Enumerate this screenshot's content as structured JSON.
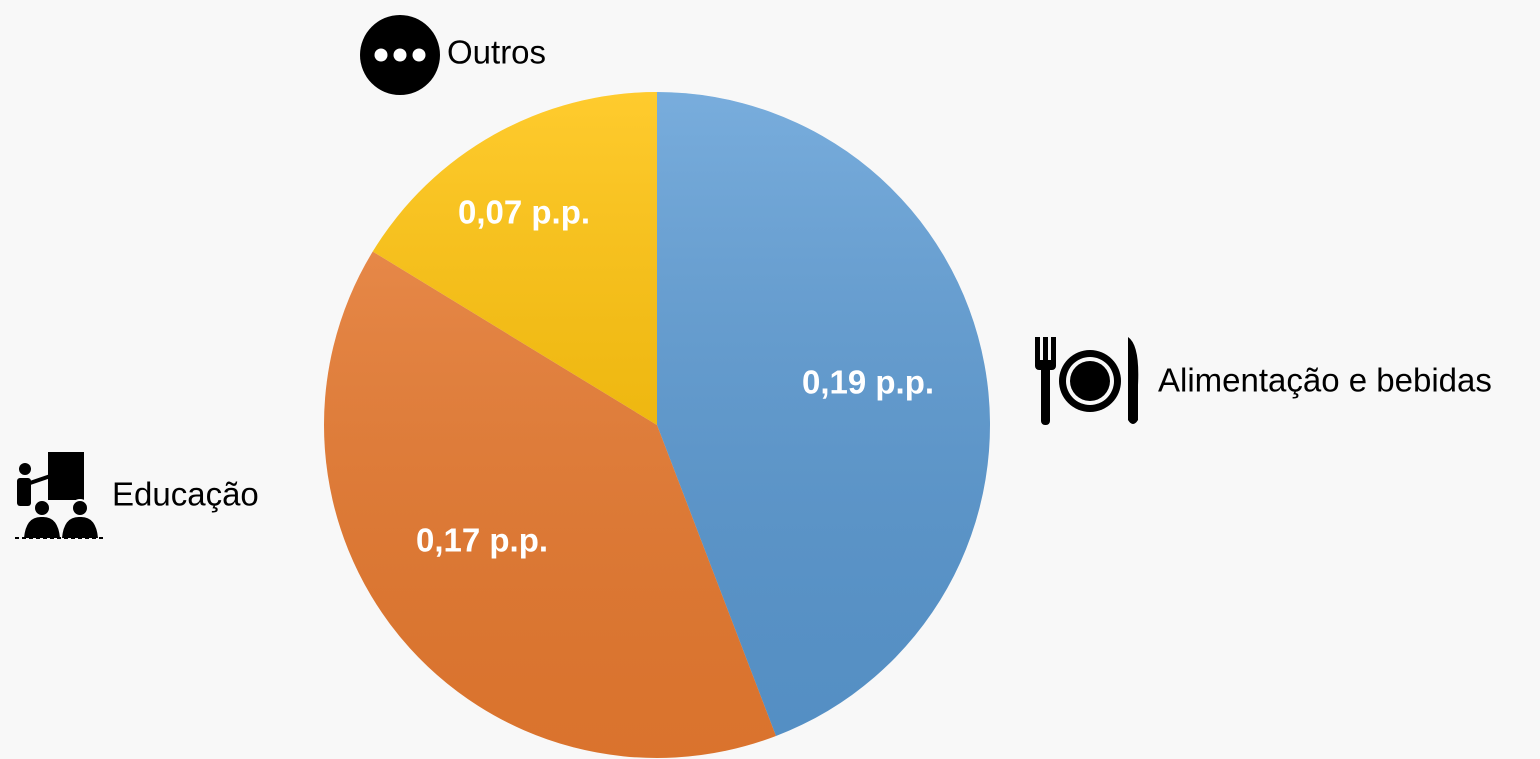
{
  "chart_data": {
    "type": "pie",
    "categories": [
      "Alimentação e bebidas",
      "Educação",
      "Outros"
    ],
    "values": [
      0.19,
      0.17,
      0.07
    ],
    "value_labels": [
      "0,19 p.p.",
      "0,17 p.p.",
      "0,07 p.p."
    ],
    "colors": [
      "#5b9bd5",
      "#ed7d31",
      "#ffc000"
    ]
  }
}
